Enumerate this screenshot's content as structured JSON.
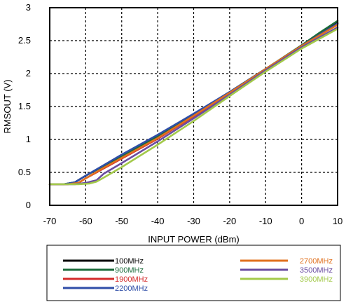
{
  "chart_data": {
    "type": "line",
    "title": "",
    "xlabel": "INPUT POWER (dBm)",
    "ylabel": "RMSOUT (V)",
    "xlim": [
      -70,
      10
    ],
    "ylim": [
      0,
      3
    ],
    "x_ticks": [
      "-70",
      "-60",
      "-50",
      "-40",
      "-30",
      "-20",
      "-10",
      "0",
      "10"
    ],
    "y_ticks": [
      "0",
      "0.5",
      "1",
      "1.5",
      "2",
      "2.5",
      "3"
    ],
    "grid": true,
    "legend_position": "bottom",
    "series": [
      {
        "name": "100MHz",
        "color": "#000000",
        "x": [
          -70,
          -66,
          -63,
          -60,
          -55,
          -50,
          -40,
          -30,
          -20,
          -10,
          0,
          5,
          10
        ],
        "y": [
          0.32,
          0.32,
          0.35,
          0.45,
          0.6,
          0.75,
          1.05,
          1.38,
          1.72,
          2.07,
          2.42,
          2.6,
          2.78
        ]
      },
      {
        "name": "900MHz",
        "color": "#1a6b3a",
        "x": [
          -70,
          -66,
          -63,
          -60,
          -55,
          -50,
          -40,
          -30,
          -20,
          -10,
          0,
          5,
          10
        ],
        "y": [
          0.32,
          0.32,
          0.35,
          0.45,
          0.6,
          0.75,
          1.05,
          1.38,
          1.72,
          2.07,
          2.43,
          2.62,
          2.8
        ]
      },
      {
        "name": "1900MHz",
        "color": "#d42a2a",
        "x": [
          -70,
          -65,
          -62,
          -60,
          -55,
          -50,
          -40,
          -30,
          -20,
          -10,
          0,
          5,
          10
        ],
        "y": [
          0.32,
          0.32,
          0.34,
          0.41,
          0.56,
          0.71,
          1.01,
          1.35,
          1.7,
          2.06,
          2.42,
          2.59,
          2.76
        ]
      },
      {
        "name": "2200MHz",
        "color": "#2f4ea8",
        "x": [
          -70,
          -66,
          -63,
          -60,
          -55,
          -50,
          -40,
          -30,
          -20,
          -10,
          0,
          5,
          10
        ],
        "y": [
          0.32,
          0.32,
          0.35,
          0.45,
          0.61,
          0.77,
          1.07,
          1.39,
          1.72,
          2.07,
          2.42,
          2.59,
          2.76
        ]
      },
      {
        "name": "2700MHz",
        "color": "#e0701e",
        "x": [
          -70,
          -65,
          -62,
          -60,
          -55,
          -50,
          -40,
          -30,
          -20,
          -10,
          0,
          5,
          10
        ],
        "y": [
          0.32,
          0.32,
          0.34,
          0.41,
          0.57,
          0.72,
          1.02,
          1.36,
          1.71,
          2.07,
          2.42,
          2.58,
          2.74
        ]
      },
      {
        "name": "3500MHz",
        "color": "#6a4ca0",
        "x": [
          -70,
          -63,
          -60,
          -57,
          -55,
          -50,
          -40,
          -30,
          -20,
          -10,
          0,
          5,
          10
        ],
        "y": [
          0.32,
          0.32,
          0.34,
          0.38,
          0.48,
          0.64,
          0.97,
          1.32,
          1.68,
          2.05,
          2.4,
          2.55,
          2.7
        ]
      },
      {
        "name": "3900MHz",
        "color": "#a3c94a",
        "x": [
          -70,
          -62,
          -59,
          -57,
          -55,
          -50,
          -40,
          -30,
          -20,
          -10,
          0,
          5,
          10
        ],
        "y": [
          0.32,
          0.32,
          0.33,
          0.36,
          0.42,
          0.58,
          0.92,
          1.28,
          1.66,
          2.03,
          2.38,
          2.53,
          2.68
        ]
      }
    ]
  }
}
